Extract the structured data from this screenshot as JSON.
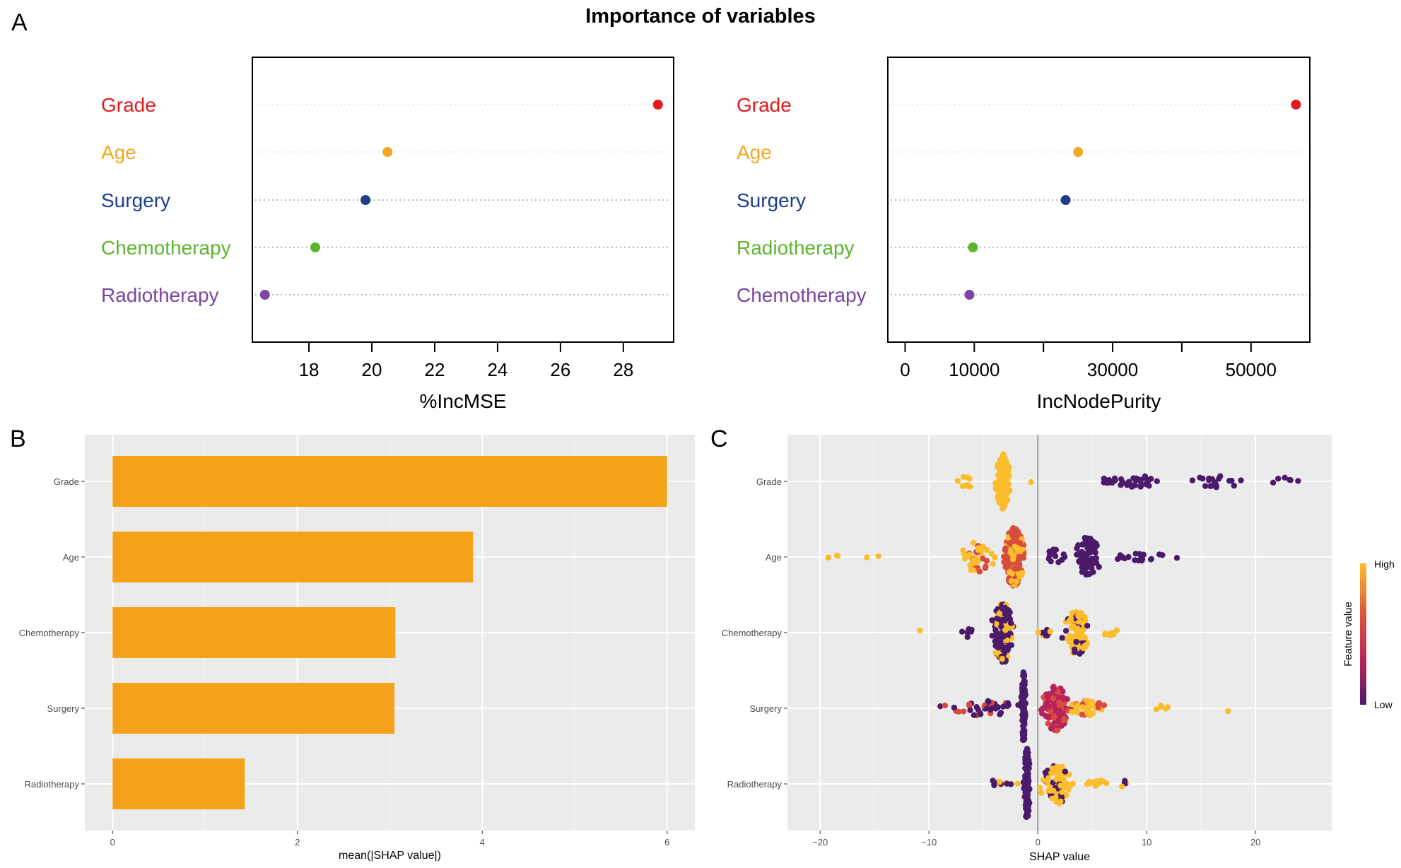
{
  "figure": {
    "title": "Importance of variables"
  },
  "panels": {
    "a": "A",
    "b": "B",
    "c": "C"
  },
  "colors": {
    "grade": "#e31a1c",
    "age": "#f5a623",
    "surgery": "#1f3d8c",
    "green": "#5bb52d",
    "purple": "#7a45a3",
    "bar": "#f5a21b",
    "panel_bg": "#ebebeb",
    "gridline": "#ffffff",
    "shap_high": "#fbbd2c",
    "shap_mid": "#d84c3e",
    "shap_mid2": "#b8225a",
    "shap_low": "#4b1a6b"
  },
  "chart_data": [
    {
      "id": "incmse",
      "type": "scatter",
      "subtype": "dotchart",
      "categories": [
        "Grade",
        "Age",
        "Surgery",
        "Chemotherapy",
        "Radiotherapy"
      ],
      "values": [
        29.1,
        20.5,
        19.8,
        18.2,
        16.6
      ],
      "xlabel": "%IncMSE",
      "xlim": [
        16.2,
        29.6
      ],
      "ticks": [
        18,
        20,
        22,
        24,
        26,
        28
      ],
      "tick_labels": [
        "18",
        "20",
        "22",
        "24",
        "26",
        "28"
      ]
    },
    {
      "id": "incnodepurity",
      "type": "scatter",
      "subtype": "dotchart",
      "categories": [
        "Grade",
        "Age",
        "Surgery",
        "Radiotherapy",
        "Chemotherapy"
      ],
      "values": [
        56500,
        25000,
        23200,
        9800,
        9300
      ],
      "xlabel": "IncNodePurity",
      "xlim": [
        -2500,
        58500
      ],
      "ticks": [
        0,
        10000,
        20000,
        30000,
        40000,
        50000
      ],
      "tick_labels": [
        "0",
        "10000",
        "",
        "30000",
        "",
        "50000"
      ]
    },
    {
      "id": "mean_shap",
      "type": "bar",
      "orientation": "horizontal",
      "categories": [
        "Grade",
        "Age",
        "Chemotherapy",
        "Surgery",
        "Radiotherapy"
      ],
      "values": [
        6.0,
        3.9,
        3.06,
        3.05,
        1.43
      ],
      "xlabel": "mean(|SHAP value|)",
      "xlim": [
        -0.3,
        6.3
      ],
      "ticks": [
        0,
        2,
        4,
        6
      ],
      "tick_labels": [
        "0",
        "2",
        "4",
        "6"
      ]
    },
    {
      "id": "shap_beeswarm",
      "type": "scatter",
      "subtype": "beeswarm",
      "categories": [
        "Grade",
        "Age",
        "Chemotherapy",
        "Surgery",
        "Radiotherapy"
      ],
      "xlabel": "SHAP value",
      "xlim": [
        -23,
        27
      ],
      "ticks": [
        -20,
        -10,
        0,
        10,
        20
      ],
      "tick_labels": [
        "−20",
        "−10",
        "0",
        "10",
        "20"
      ],
      "reference_line": 0,
      "legend": {
        "title": "Feature value",
        "high": "High",
        "low": "Low",
        "position": "right"
      },
      "clusters": [
        {
          "feature": "Grade",
          "x": -3.2,
          "sd": 0.45,
          "n": 160,
          "spread": 0.38,
          "colors": [
            "shap_high"
          ]
        },
        {
          "feature": "Grade",
          "x": -6.5,
          "sd": 0.5,
          "n": 10,
          "spread": 0.1,
          "colors": [
            "shap_high"
          ]
        },
        {
          "feature": "Grade",
          "x": -0.5,
          "sd": 0.2,
          "n": 1,
          "spread": 0.05,
          "colors": [
            "shap_high"
          ]
        },
        {
          "feature": "Grade",
          "x": 8.5,
          "sd": 2.6,
          "n": 34,
          "spread": 0.08,
          "colors": [
            "shap_low"
          ]
        },
        {
          "feature": "Grade",
          "x": 16.5,
          "sd": 1.8,
          "n": 18,
          "spread": 0.08,
          "colors": [
            "shap_low"
          ]
        },
        {
          "feature": "Grade",
          "x": 22.5,
          "sd": 1.5,
          "n": 6,
          "spread": 0.05,
          "colors": [
            "shap_low"
          ]
        },
        {
          "feature": "Age",
          "x": -2.2,
          "sd": 0.7,
          "n": 220,
          "spread": 0.4,
          "colors": [
            "shap_mid",
            "shap_mid",
            "shap_high"
          ]
        },
        {
          "feature": "Age",
          "x": -5.5,
          "sd": 1.1,
          "n": 45,
          "spread": 0.2,
          "colors": [
            "shap_high",
            "shap_mid",
            "shap_high"
          ]
        },
        {
          "feature": "Age",
          "x": -17.5,
          "sd": 2.0,
          "n": 5,
          "spread": 0.04,
          "colors": [
            "shap_high"
          ]
        },
        {
          "feature": "Age",
          "x": 4.6,
          "sd": 0.8,
          "n": 70,
          "spread": 0.28,
          "colors": [
            "shap_low"
          ]
        },
        {
          "feature": "Age",
          "x": 1.5,
          "sd": 0.6,
          "n": 12,
          "spread": 0.1,
          "colors": [
            "shap_low"
          ]
        },
        {
          "feature": "Age",
          "x": 9.5,
          "sd": 2.0,
          "n": 20,
          "spread": 0.06,
          "colors": [
            "shap_low"
          ]
        },
        {
          "feature": "Chemotherapy",
          "x": -3.2,
          "sd": 0.75,
          "n": 170,
          "spread": 0.4,
          "colors": [
            "shap_low",
            "shap_low",
            "shap_low",
            "shap_high"
          ]
        },
        {
          "feature": "Chemotherapy",
          "x": -6.5,
          "sd": 0.5,
          "n": 6,
          "spread": 0.06,
          "colors": [
            "shap_low"
          ]
        },
        {
          "feature": "Chemotherapy",
          "x": -10.8,
          "sd": 0.1,
          "n": 1,
          "spread": 0.05,
          "colors": [
            "shap_high"
          ]
        },
        {
          "feature": "Chemotherapy",
          "x": 3.6,
          "sd": 0.8,
          "n": 110,
          "spread": 0.3,
          "colors": [
            "shap_high",
            "shap_high",
            "shap_high",
            "shap_low"
          ]
        },
        {
          "feature": "Chemotherapy",
          "x": 0.9,
          "sd": 0.5,
          "n": 10,
          "spread": 0.05,
          "colors": [
            "shap_low",
            "shap_high"
          ]
        },
        {
          "feature": "Chemotherapy",
          "x": 6.8,
          "sd": 0.6,
          "n": 8,
          "spread": 0.05,
          "colors": [
            "shap_high"
          ]
        },
        {
          "feature": "Surgery",
          "x": -1.3,
          "sd": 0.15,
          "n": 100,
          "spread": 0.48,
          "colors": [
            "shap_low"
          ]
        },
        {
          "feature": "Surgery",
          "x": -5.0,
          "sd": 2.5,
          "n": 45,
          "spread": 0.1,
          "colors": [
            "shap_low",
            "shap_mid",
            "shap_low"
          ]
        },
        {
          "feature": "Surgery",
          "x": 1.6,
          "sd": 0.9,
          "n": 120,
          "spread": 0.3,
          "colors": [
            "shap_mid2",
            "shap_mid",
            "shap_mid2"
          ]
        },
        {
          "feature": "Surgery",
          "x": 4.5,
          "sd": 1.3,
          "n": 40,
          "spread": 0.1,
          "colors": [
            "shap_high",
            "shap_mid",
            "shap_high"
          ]
        },
        {
          "feature": "Surgery",
          "x": 11.5,
          "sd": 0.6,
          "n": 5,
          "spread": 0.04,
          "colors": [
            "shap_high"
          ]
        },
        {
          "feature": "Surgery",
          "x": 17.5,
          "sd": 0.1,
          "n": 1,
          "spread": 0.04,
          "colors": [
            "shap_high"
          ]
        },
        {
          "feature": "Radiotherapy",
          "x": -1.0,
          "sd": 0.2,
          "n": 110,
          "spread": 0.48,
          "colors": [
            "shap_low"
          ]
        },
        {
          "feature": "Radiotherapy",
          "x": -3.5,
          "sd": 1.2,
          "n": 14,
          "spread": 0.05,
          "colors": [
            "shap_high",
            "shap_low"
          ]
        },
        {
          "feature": "Radiotherapy",
          "x": 1.8,
          "sd": 1.2,
          "n": 80,
          "spread": 0.26,
          "colors": [
            "shap_high",
            "shap_low",
            "shap_high",
            "shap_high"
          ]
        },
        {
          "feature": "Radiotherapy",
          "x": 5.5,
          "sd": 0.8,
          "n": 12,
          "spread": 0.05,
          "colors": [
            "shap_high"
          ]
        },
        {
          "feature": "Radiotherapy",
          "x": 8.0,
          "sd": 0.6,
          "n": 5,
          "spread": 0.04,
          "colors": [
            "shap_low",
            "shap_high"
          ]
        }
      ]
    }
  ]
}
